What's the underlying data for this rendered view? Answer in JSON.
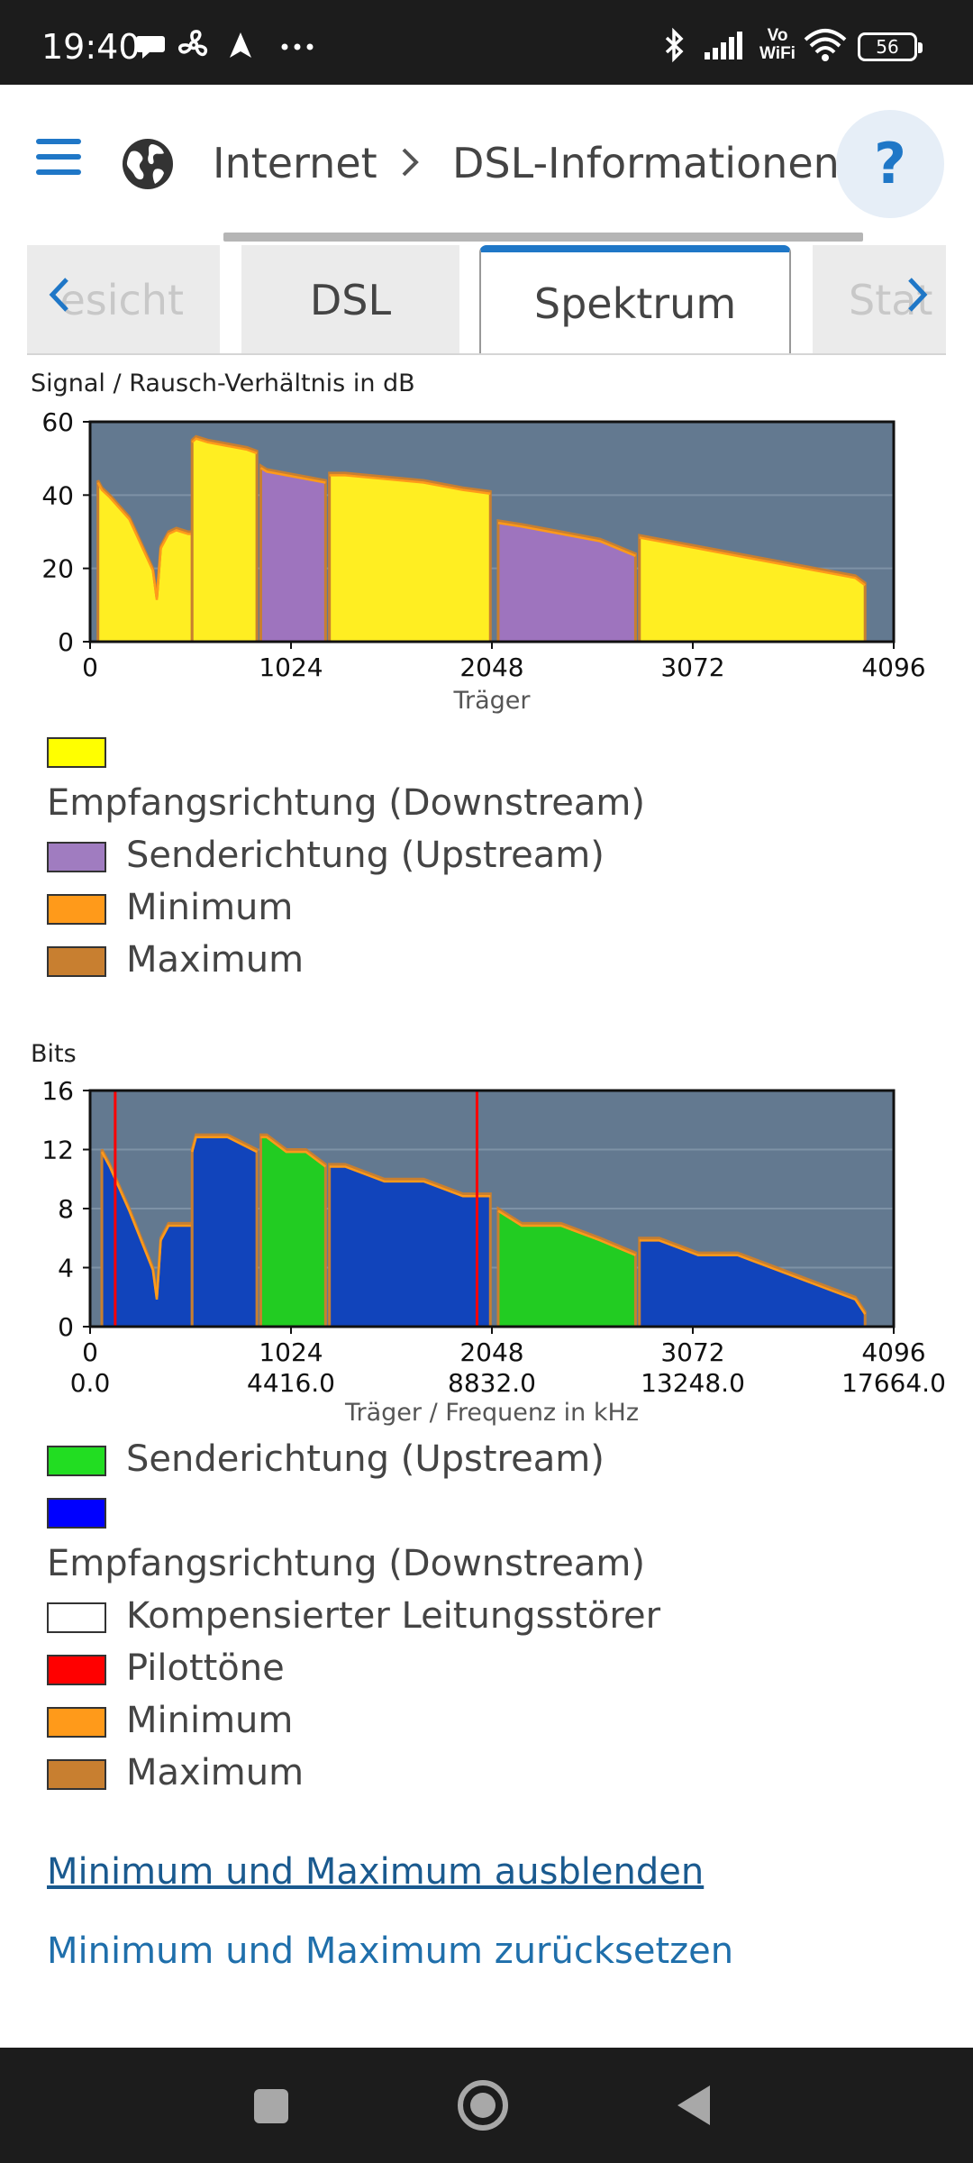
{
  "status_bar": {
    "time": "19:40",
    "icons": [
      "chat-bubble-icon",
      "fan-icon",
      "navigation-icon",
      "more-dots-icon",
      "bluetooth-icon",
      "signal-icon",
      "vowifi-icon",
      "wifi-icon"
    ],
    "vowifi_top": "Vo",
    "vowifi_bottom": "WiFi",
    "battery": "56"
  },
  "header": {
    "crumb_root": "Internet",
    "crumb_current": "DSL-Informationen",
    "help_label": "?"
  },
  "tabs": [
    {
      "label": "Übersicht",
      "visible_text": "esicht"
    },
    {
      "label": "DSL"
    },
    {
      "label": "Spektrum",
      "active": true
    },
    {
      "label": "Statistik",
      "visible_text": "Stat"
    }
  ],
  "snr_chart_legend": [
    {
      "label": "",
      "color": "#ffff00"
    },
    {
      "label": "Empfangsrichtung (Downstream)",
      "color": null
    },
    {
      "label": "Senderichtung (Upstream)",
      "color": "#a07cc0"
    },
    {
      "label": "Minimum",
      "color": "#ff9a1a"
    },
    {
      "label": "Maximum",
      "color": "#c87f30"
    }
  ],
  "bits_chart_legend": [
    {
      "label": "Senderichtung (Upstream)",
      "color": "#22dd22"
    },
    {
      "label": "",
      "color": "#0000ff"
    },
    {
      "label": "Empfangsrichtung (Downstream)",
      "color": null
    },
    {
      "label": "Kompensierter Leitungsstörer",
      "color": "#ffffff"
    },
    {
      "label": "Pilottöne",
      "color": "#ff0000"
    },
    {
      "label": "Minimum",
      "color": "#ff9a1a"
    },
    {
      "label": "Maximum",
      "color": "#c87f30"
    }
  ],
  "links": {
    "hide_minmax": "Minimum und Maximum ausblenden",
    "reset_minmax": "Minimum und Maximum zurücksetzen"
  },
  "chart_data": [
    {
      "type": "area",
      "title": "Signal / Rausch-Verhältnis in dB",
      "xlabel": "Träger",
      "ylabel": "",
      "xlim": [
        0,
        4096
      ],
      "ylim": [
        0,
        60
      ],
      "xticks": [
        "0",
        "1024",
        "2048",
        "3072",
        "4096"
      ],
      "yticks": [
        "0",
        "20",
        "40",
        "60"
      ],
      "background": "#637990",
      "series": [
        {
          "name": "Empfangsrichtung (Downstream)",
          "color": "#ffee22",
          "segments": [
            {
              "x": [
                40,
                60,
                100,
                200,
                320,
                340,
                360,
                400,
                440,
                500,
                520
              ],
              "y": [
                44,
                42,
                40,
                34,
                20,
                12,
                26,
                30,
                31,
                30,
                30
              ]
            },
            {
              "x": [
                520,
                540,
                600,
                700,
                800,
                850
              ],
              "y": [
                55,
                56,
                55,
                54,
                53,
                52
              ]
            },
            {
              "x": [
                1220,
                1300,
                1500,
                1700,
                1900,
                2040
              ],
              "y": [
                46,
                46,
                45,
                44,
                42,
                41
              ]
            },
            {
              "x": [
                2800,
                2900,
                3100,
                3300,
                3500,
                3700,
                3900,
                3950
              ],
              "y": [
                29,
                28,
                26,
                24,
                22,
                20,
                18,
                16
              ]
            }
          ]
        },
        {
          "name": "Senderichtung (Upstream)",
          "color": "#9e74be",
          "segments": [
            {
              "x": [
                870,
                900,
                1000,
                1100,
                1200
              ],
              "y": [
                48,
                47,
                46,
                45,
                44
              ]
            },
            {
              "x": [
                2080,
                2200,
                2400,
                2600,
                2780
              ],
              "y": [
                33,
                32,
                30,
                28,
                24
              ]
            }
          ]
        }
      ]
    },
    {
      "type": "area",
      "title": "Bits",
      "xlabel": "Träger / Frequenz in kHz",
      "ylabel": "",
      "xlim": [
        0,
        4096
      ],
      "ylim": [
        0,
        16
      ],
      "xticks": [
        "0",
        "1024",
        "2048",
        "3072",
        "4096"
      ],
      "xticks_secondary": [
        "0.0",
        "4416.0",
        "8832.0",
        "13248.0",
        "17664.0"
      ],
      "yticks": [
        "0",
        "4",
        "8",
        "12",
        "16"
      ],
      "background": "#637990",
      "pilot_tones": [
        128,
        1972
      ],
      "series": [
        {
          "name": "Empfangsrichtung (Downstream)",
          "color": "#1144bb",
          "segments": [
            {
              "x": [
                60,
                100,
                200,
                320,
                340,
                360,
                400,
                500,
                520
              ],
              "y": [
                12,
                11,
                8,
                4,
                2,
                6,
                7,
                7,
                7
              ]
            },
            {
              "x": [
                520,
                540,
                600,
                700,
                850
              ],
              "y": [
                12,
                13,
                13,
                13,
                12
              ]
            },
            {
              "x": [
                1220,
                1300,
                1500,
                1700,
                1900,
                2040
              ],
              "y": [
                11,
                11,
                10,
                10,
                9,
                9
              ]
            },
            {
              "x": [
                2800,
                2900,
                3100,
                3300,
                3500,
                3700,
                3900,
                3950
              ],
              "y": [
                6,
                6,
                5,
                5,
                4,
                3,
                2,
                1
              ]
            }
          ]
        },
        {
          "name": "Senderichtung (Upstream)",
          "color": "#22cc22",
          "segments": [
            {
              "x": [
                870,
                900,
                1000,
                1100,
                1200
              ],
              "y": [
                13,
                13,
                12,
                12,
                11
              ]
            },
            {
              "x": [
                2080,
                2200,
                2400,
                2600,
                2780
              ],
              "y": [
                8,
                7,
                7,
                6,
                5
              ]
            }
          ]
        }
      ]
    }
  ]
}
